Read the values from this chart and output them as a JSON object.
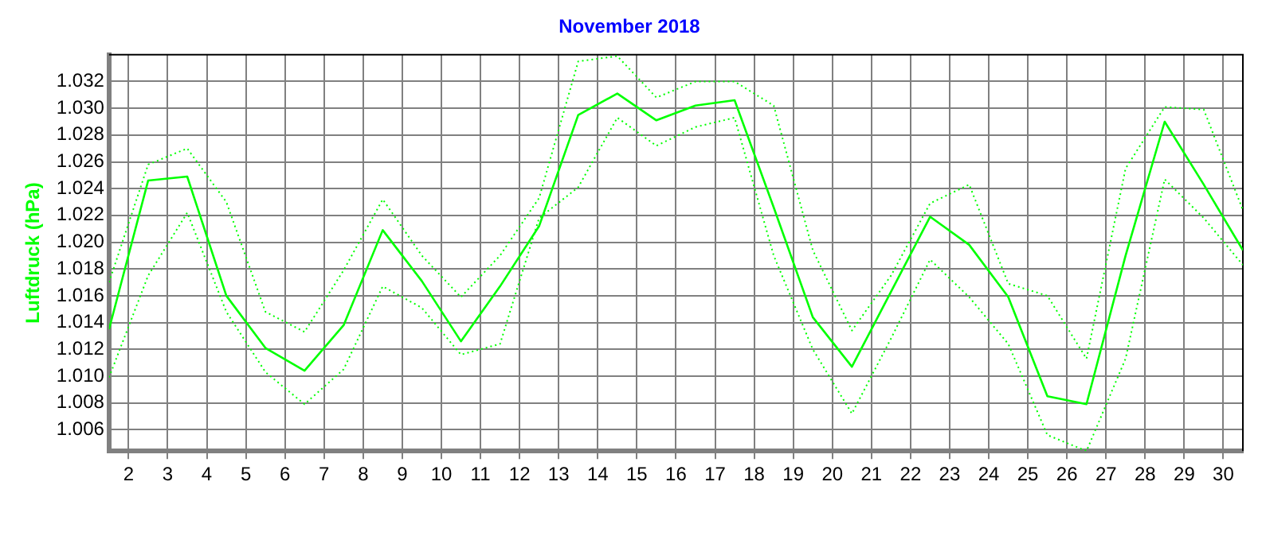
{
  "chart_data": {
    "type": "line",
    "title": "November 2018",
    "ylabel": "Luftdruck (hPa)",
    "x": [
      1.5,
      2.5,
      3.5,
      4.5,
      5.5,
      6.5,
      7.5,
      8.5,
      9.5,
      10.5,
      11.5,
      12.5,
      13.5,
      14.5,
      15.5,
      16.5,
      17.5,
      18.5,
      19.5,
      20.5,
      21.5,
      22.5,
      23.5,
      24.5,
      25.5,
      26.5,
      27.5,
      28.5,
      29.5,
      30.5
    ],
    "series": [
      {
        "color": "#00ff00",
        "line_style": "dotted",
        "values": [
          1.017,
          1.0258,
          1.027,
          1.023,
          1.0148,
          1.0133,
          1.0179,
          1.0232,
          1.019,
          1.0159,
          1.019,
          1.0233,
          1.0335,
          1.0339,
          1.0308,
          1.032,
          1.032,
          1.0302,
          1.0194,
          1.0134,
          1.0175,
          1.0229,
          1.0243,
          1.0169,
          1.016,
          1.0113,
          1.0255,
          1.0301,
          1.0299,
          1.0224
        ]
      },
      {
        "color": "#00ff00",
        "line_style": "solid",
        "values": [
          1.0135,
          1.0246,
          1.0249,
          1.016,
          1.0121,
          1.0104,
          1.0138,
          1.0209,
          1.0171,
          1.0126,
          1.0167,
          1.0212,
          1.0295,
          1.0311,
          1.0291,
          1.0302,
          1.0306,
          1.0226,
          1.0144,
          1.0107,
          1.0163,
          1.0219,
          1.0198,
          1.0159,
          1.0085,
          1.0079,
          1.019,
          1.029,
          1.0243,
          1.0194
        ]
      },
      {
        "color": "#00ff00",
        "line_style": "dotted",
        "values": [
          1.0099,
          1.0175,
          1.0222,
          1.0148,
          1.0103,
          1.0079,
          1.0105,
          1.0167,
          1.0151,
          1.0116,
          1.0124,
          1.0218,
          1.0241,
          1.0293,
          1.0272,
          1.0286,
          1.0293,
          1.019,
          1.012,
          1.0072,
          1.0128,
          1.0187,
          1.0159,
          1.0124,
          1.0056,
          1.0044,
          1.0113,
          1.0247,
          1.0218,
          1.0183
        ]
      }
    ],
    "xlim": [
      1.5,
      30.5
    ],
    "xticks": [
      2,
      3,
      4,
      5,
      6,
      7,
      8,
      9,
      10,
      11,
      12,
      13,
      14,
      15,
      16,
      17,
      18,
      19,
      20,
      21,
      22,
      23,
      24,
      25,
      26,
      27,
      28,
      29,
      30
    ],
    "ylim": [
      1.0044,
      1.034
    ],
    "yticks": [
      {
        "value": 1.006,
        "label": "1.006"
      },
      {
        "value": 1.008,
        "label": "1.008"
      },
      {
        "value": 1.01,
        "label": "1.010"
      },
      {
        "value": 1.012,
        "label": "1.012"
      },
      {
        "value": 1.014,
        "label": "1.014"
      },
      {
        "value": 1.016,
        "label": "1.016"
      },
      {
        "value": 1.018,
        "label": "1.018"
      },
      {
        "value": 1.02,
        "label": "1.020"
      },
      {
        "value": 1.022,
        "label": "1.022"
      },
      {
        "value": 1.024,
        "label": "1.024"
      },
      {
        "value": 1.026,
        "label": "1.026"
      },
      {
        "value": 1.028,
        "label": "1.028"
      },
      {
        "value": 1.03,
        "label": "1.030"
      },
      {
        "value": 1.032,
        "label": "1.032"
      }
    ],
    "grid": true,
    "legend": false,
    "marker": "none"
  }
}
